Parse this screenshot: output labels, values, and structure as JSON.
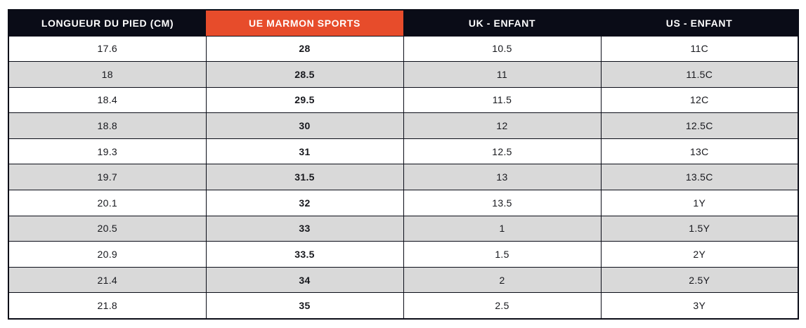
{
  "colors": {
    "header_bg": "#0a0c17",
    "brand_orange": "#e74c2b",
    "stripe_gray": "#d9d9d9",
    "row_white": "#ffffff",
    "border": "#0a0c17",
    "header_text": "#ffffff",
    "body_text": "#17181d"
  },
  "table": {
    "headers": [
      {
        "label": "LONGUEUR DU PIED (CM)",
        "highlight": false
      },
      {
        "label": "UE MARMON SPORTS",
        "highlight": true
      },
      {
        "label": "UK - ENFANT",
        "highlight": false
      },
      {
        "label": "US - ENFANT",
        "highlight": false
      }
    ],
    "rows": [
      [
        "17.6",
        "28",
        "10.5",
        "11C"
      ],
      [
        "18",
        "28.5",
        "11",
        "11.5C"
      ],
      [
        "18.4",
        "29.5",
        "11.5",
        "12C"
      ],
      [
        "18.8",
        "30",
        "12",
        "12.5C"
      ],
      [
        "19.3",
        "31",
        "12.5",
        "13C"
      ],
      [
        "19.7",
        "31.5",
        "13",
        "13.5C"
      ],
      [
        "20.1",
        "32",
        "13.5",
        "1Y"
      ],
      [
        "20.5",
        "33",
        "1",
        "1.5Y"
      ],
      [
        "20.9",
        "33.5",
        "1.5",
        "2Y"
      ],
      [
        "21.4",
        "34",
        "2",
        "2.5Y"
      ],
      [
        "21.8",
        "35",
        "2.5",
        "3Y"
      ]
    ]
  },
  "chart_data": {
    "type": "table",
    "title": "",
    "columns": [
      "LONGUEUR DU PIED (CM)",
      "UE MARMON SPORTS",
      "UK - ENFANT",
      "US - ENFANT"
    ],
    "rows": [
      [
        "17.6",
        "28",
        "10.5",
        "11C"
      ],
      [
        "18",
        "28.5",
        "11",
        "11.5C"
      ],
      [
        "18.4",
        "29.5",
        "11.5",
        "12C"
      ],
      [
        "18.8",
        "30",
        "12",
        "12.5C"
      ],
      [
        "19.3",
        "31",
        "12.5",
        "13C"
      ],
      [
        "19.7",
        "31.5",
        "13",
        "13.5C"
      ],
      [
        "20.1",
        "32",
        "13.5",
        "1Y"
      ],
      [
        "20.5",
        "33",
        "1",
        "1.5Y"
      ],
      [
        "20.9",
        "33.5",
        "1.5",
        "2Y"
      ],
      [
        "21.4",
        "34",
        "2",
        "2.5Y"
      ],
      [
        "21.8",
        "35",
        "2.5",
        "3Y"
      ]
    ]
  }
}
